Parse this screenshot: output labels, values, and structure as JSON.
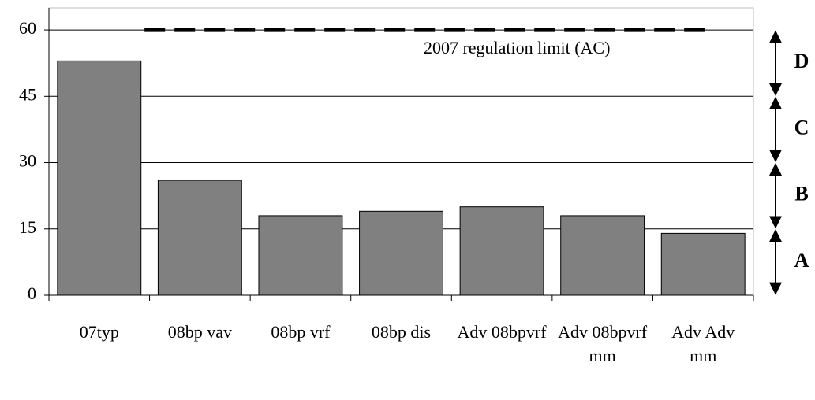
{
  "chart_data": {
    "type": "bar",
    "categories": [
      "07typ",
      "08bp vav",
      "08bp vrf",
      "08bp dis",
      "Adv 08bpvrf",
      "Adv 08bpvrf mm",
      "Adv Adv mm"
    ],
    "values": [
      53,
      26,
      18,
      19,
      20,
      18,
      14
    ],
    "color": "#808080",
    "ylim": [
      0,
      65
    ],
    "yticks": [
      0,
      15,
      30,
      45,
      60
    ],
    "grid": true,
    "reference_line": {
      "value": 60,
      "label": "2007 regulation limit (AC)"
    },
    "bands": [
      {
        "label": "A",
        "from": 0,
        "to": 15
      },
      {
        "label": "B",
        "from": 15,
        "to": 30
      },
      {
        "label": "C",
        "from": 30,
        "to": 45
      },
      {
        "label": "D",
        "from": 45,
        "to": 60
      }
    ]
  }
}
